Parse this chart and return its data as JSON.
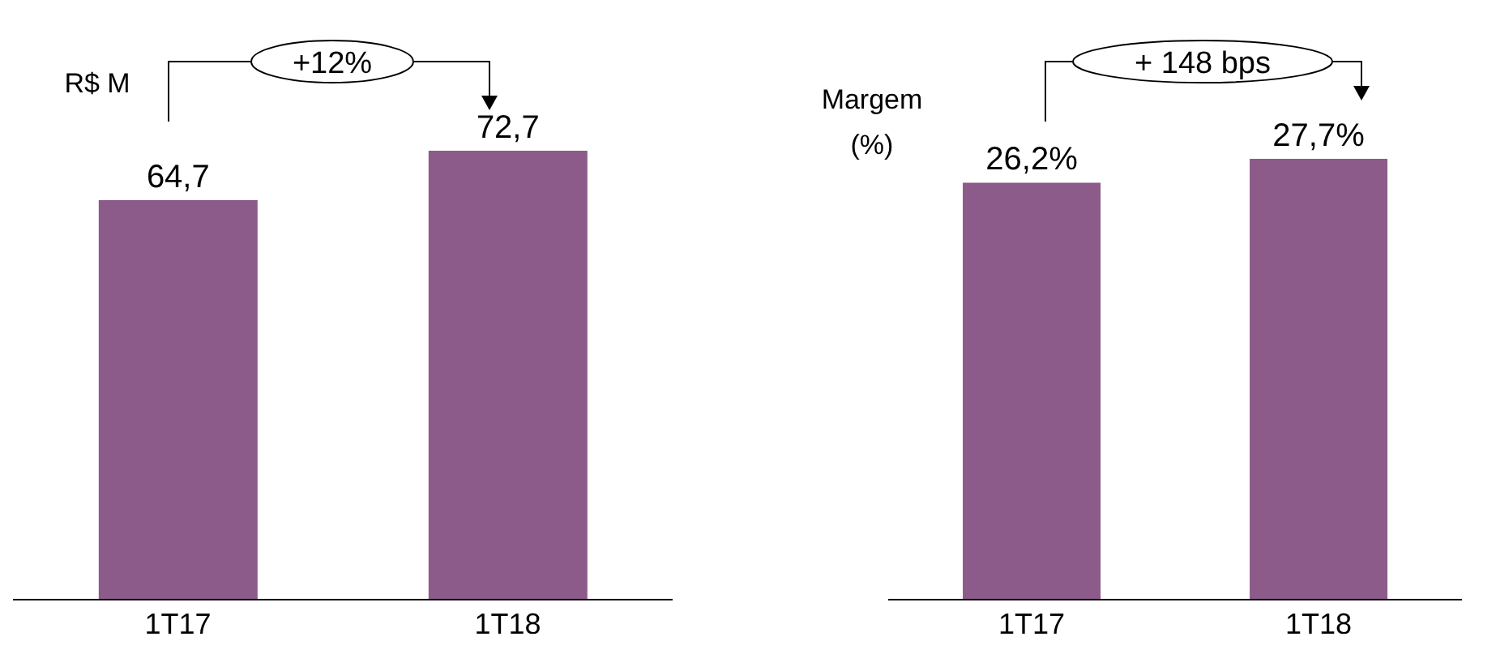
{
  "chart_data": [
    {
      "type": "bar",
      "ylabel": "R$ M",
      "categories": [
        "1T17",
        "1T18"
      ],
      "values": [
        64.7,
        72.7
      ],
      "value_labels": [
        "64,7",
        "72,7"
      ],
      "color": "#8c5b8a",
      "annotations": [
        "+12%"
      ],
      "grid": false,
      "legend": false
    },
    {
      "type": "bar",
      "ylabel": "Margem (%)",
      "categories": [
        "1T17",
        "1T18"
      ],
      "values": [
        26.2,
        27.7
      ],
      "value_labels": [
        "26,2%",
        "27,7%"
      ],
      "color": "#8c5b8a",
      "annotations": [
        "+ 148 bps"
      ],
      "grid": false,
      "legend": false
    }
  ]
}
